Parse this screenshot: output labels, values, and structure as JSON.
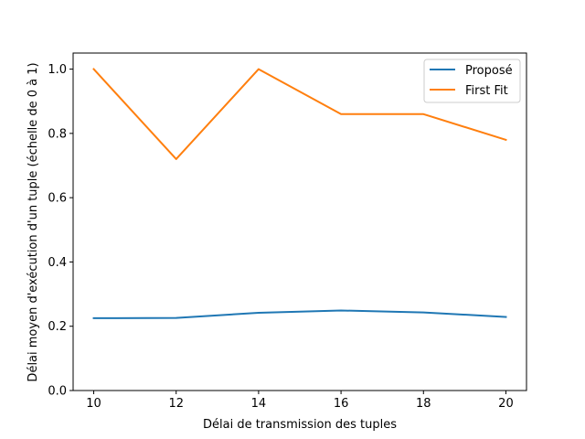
{
  "chart_data": {
    "type": "line",
    "title": "",
    "xlabel": "Délai de transmission des tuples",
    "ylabel": "Délai moyen d'exécution d'un tuple (échelle de 0 à 1)",
    "x": [
      10,
      12,
      14,
      16,
      18,
      20
    ],
    "xticks": [
      "10",
      "12",
      "14",
      "16",
      "18",
      "20"
    ],
    "yticks": [
      "0.0",
      "0.2",
      "0.4",
      "0.6",
      "0.8",
      "1.0"
    ],
    "xlim": [
      9.5,
      20.5
    ],
    "ylim": [
      0.0,
      1.05
    ],
    "grid": false,
    "legend_position": "top-right",
    "series": [
      {
        "name": "Proposé",
        "color": "#1f77b4",
        "values": [
          0.225,
          0.226,
          0.242,
          0.249,
          0.243,
          0.229
        ]
      },
      {
        "name": "First Fit",
        "color": "#ff7f0e",
        "values": [
          1.0,
          0.72,
          1.0,
          0.86,
          0.86,
          0.78
        ]
      }
    ]
  }
}
